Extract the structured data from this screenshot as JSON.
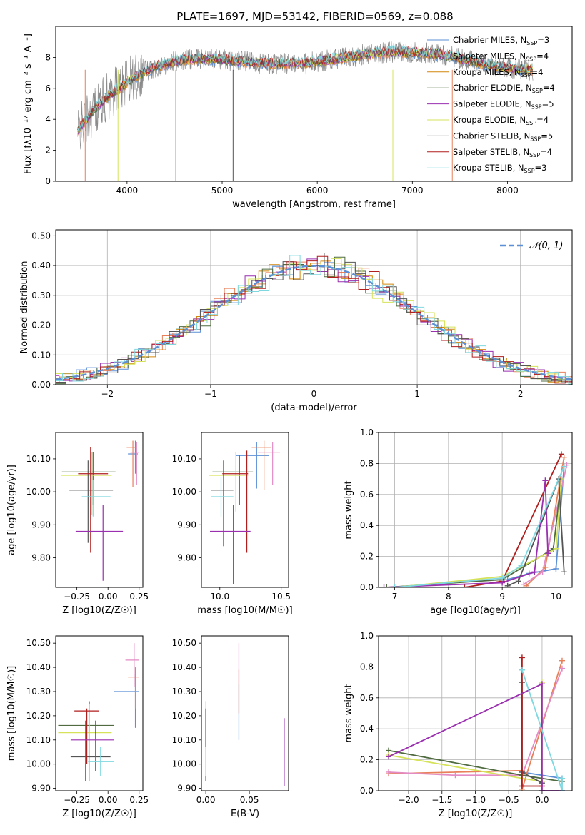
{
  "figure": {
    "title": "PLATE=1697, MJD=53142, FIBERID=0569, z=0.088"
  },
  "chart_data": [
    {
      "id": "spectrum",
      "type": "line",
      "xlabel": "wavelength [Angstrom, rest frame]",
      "ylabel": "Flux [fλ10⁻¹⁷ erg cm⁻² s⁻¹ A⁻¹]",
      "xlim": [
        3250,
        8680
      ],
      "ylim": [
        0,
        10
      ],
      "xticks": [
        4000,
        5000,
        6000,
        7000,
        8000
      ],
      "yticks": [
        0,
        2,
        4,
        6,
        8
      ],
      "grid": false,
      "legend_position": "right",
      "series": [
        {
          "name": "Chabrier MILES, NSSP=3",
          "color": "#5b8fd6"
        },
        {
          "name": "Salpeter MILES, NSSP=4",
          "color": "#e8805a"
        },
        {
          "name": "Kroupa MILES, NSSP=4",
          "color": "#d4860b"
        },
        {
          "name": "Chabrier ELODIE, NSSP=4",
          "color": "#4f6b3f"
        },
        {
          "name": "Salpeter ELODIE, NSSP=5",
          "color": "#9a2fb0"
        },
        {
          "name": "Kroupa ELODIE, NSSP=4",
          "color": "#d6e35a"
        },
        {
          "name": "Chabrier STELIB, NSSP=5",
          "color": "#555555"
        },
        {
          "name": "Salpeter STELIB, NSSP=4",
          "color": "#b01e1e"
        },
        {
          "name": "Kroupa STELIB, NSSP=3",
          "color": "#7fd8e0"
        }
      ]
    },
    {
      "id": "residuals",
      "type": "line",
      "xlabel": "(data-model)/error",
      "ylabel": "Normed distribution",
      "xlim": [
        -2.5,
        2.5
      ],
      "ylim": [
        0,
        0.52
      ],
      "xticks": [
        -2,
        -1,
        0,
        1,
        2
      ],
      "yticks": [
        0.0,
        0.1,
        0.2,
        0.3,
        0.4,
        0.5
      ],
      "grid": true,
      "legend_position": "top-right",
      "legend": "𝒩(0, 1)"
    },
    {
      "id": "age_vs_Z",
      "type": "scatter",
      "xlabel": "Z [log10(Z/Z☉)]",
      "ylabel": "age  [log10(age/yr)]",
      "xlim": [
        -0.42,
        0.28
      ],
      "ylim": [
        9.71,
        10.18
      ],
      "xticks": [
        -0.25,
        0.0,
        0.25
      ],
      "yticks": [
        9.8,
        9.9,
        10.0,
        10.1
      ],
      "points": [
        {
          "color": "#5b8fd6",
          "x": 0.22,
          "y": 10.115,
          "xerr": [
            0.06,
            0.02
          ],
          "yerr": [
            0.06,
            0.04
          ]
        },
        {
          "color": "#e8805a",
          "x": 0.2,
          "y": 10.135,
          "xerr": [
            0.05,
            0.03
          ],
          "yerr": [
            0.12,
            0.02
          ]
        },
        {
          "color": "#e38bc4",
          "x": 0.23,
          "y": 10.12,
          "xerr": [
            0.05,
            0.02
          ],
          "yerr": [
            0.1,
            0.03
          ]
        },
        {
          "color": "#4f6b3f",
          "x": -0.12,
          "y": 10.06,
          "xerr": [
            0.25,
            0.18
          ],
          "yerr": [
            0.1,
            0.06
          ]
        },
        {
          "color": "#d6e35a",
          "x": -0.13,
          "y": 10.05,
          "xerr": [
            0.25,
            0.16
          ],
          "yerr": [
            0.12,
            0.07
          ]
        },
        {
          "color": "#555555",
          "x": -0.16,
          "y": 10.005,
          "xerr": [
            0.15,
            0.2
          ],
          "yerr": [
            0.16,
            0.09
          ]
        },
        {
          "color": "#b01e1e",
          "x": -0.14,
          "y": 10.055,
          "xerr": [
            0.1,
            0.14
          ],
          "yerr": [
            0.24,
            0.08
          ]
        },
        {
          "color": "#9a2fb0",
          "x": -0.04,
          "y": 9.88,
          "xerr": [
            0.22,
            0.16
          ],
          "yerr": [
            0.15,
            0.08
          ]
        },
        {
          "color": "#7fd8e0",
          "x": -0.12,
          "y": 9.985,
          "xerr": [
            0.09,
            0.14
          ],
          "yerr": [
            0.06,
            0.05
          ]
        }
      ]
    },
    {
      "id": "age_vs_mass",
      "type": "scatter",
      "xlabel": "mass [log10(M/M☉)]",
      "xlim": [
        9.85,
        10.56
      ],
      "ylim": [
        9.71,
        10.18
      ],
      "xticks": [
        10.0,
        10.5
      ],
      "yticks": [
        9.8,
        9.9,
        10.0,
        10.1
      ],
      "points": [
        {
          "color": "#5b8fd6",
          "x": 10.3,
          "y": 10.11,
          "xerr": [
            0.17,
            0.1
          ],
          "yerr": [
            0.1,
            0.04
          ]
        },
        {
          "color": "#e8805a",
          "x": 10.36,
          "y": 10.135,
          "xerr": [
            0.1,
            0.06
          ],
          "yerr": [
            0.13,
            0.02
          ]
        },
        {
          "color": "#e38bc4",
          "x": 10.43,
          "y": 10.12,
          "xerr": [
            0.12,
            0.06
          ],
          "yerr": [
            0.1,
            0.03
          ]
        },
        {
          "color": "#4f6b3f",
          "x": 10.16,
          "y": 10.06,
          "xerr": [
            0.22,
            0.11
          ],
          "yerr": [
            0.1,
            0.05
          ]
        },
        {
          "color": "#d6e35a",
          "x": 10.13,
          "y": 10.05,
          "xerr": [
            0.22,
            0.1
          ],
          "yerr": [
            0.11,
            0.07
          ]
        },
        {
          "color": "#555555",
          "x": 10.03,
          "y": 10.005,
          "xerr": [
            0.1,
            0.08
          ],
          "yerr": [
            0.17,
            0.09
          ]
        },
        {
          "color": "#b01e1e",
          "x": 10.22,
          "y": 10.055,
          "xerr": [
            0.2,
            0.01
          ],
          "yerr": [
            0.24,
            0.07
          ]
        },
        {
          "color": "#9a2fb0",
          "x": 10.11,
          "y": 9.88,
          "xerr": [
            0.19,
            0.14
          ],
          "yerr": [
            0.16,
            0.08
          ]
        },
        {
          "color": "#7fd8e0",
          "x": 10.01,
          "y": 9.985,
          "xerr": [
            0.08,
            0.1
          ],
          "yerr": [
            0.06,
            0.06
          ]
        }
      ]
    },
    {
      "id": "weight_vs_age",
      "type": "line",
      "xlabel": "age  [log10(age/yr)]",
      "ylabel": "mass weight",
      "xlim": [
        6.7,
        10.3
      ],
      "ylim": [
        0,
        1
      ],
      "xticks": [
        7,
        8,
        9,
        10
      ],
      "yticks": [
        0.0,
        0.2,
        0.4,
        0.6,
        0.8,
        1.0
      ],
      "grid": true,
      "series": [
        {
          "color": "#5b8fd6",
          "x": [
            9.1,
            9.5,
            10.0,
            10.15
          ],
          "y": [
            0.05,
            0.09,
            0.12,
            0.78
          ]
        },
        {
          "color": "#e8805a",
          "x": [
            9.45,
            9.8,
            10.15
          ],
          "y": [
            0.01,
            0.13,
            0.84
          ]
        },
        {
          "color": "#e38bc4",
          "x": [
            9.4,
            9.75,
            10.2
          ],
          "y": [
            0.02,
            0.1,
            0.79
          ]
        },
        {
          "color": "#4f6b3f",
          "x": [
            6.85,
            9.0,
            9.95,
            10.1
          ],
          "y": [
            0.0,
            0.05,
            0.25,
            0.7
          ]
        },
        {
          "color": "#d6e35a",
          "x": [
            7.0,
            9.0,
            10.0,
            10.1
          ],
          "y": [
            0.0,
            0.07,
            0.25,
            0.7
          ]
        },
        {
          "color": "#555555",
          "x": [
            9.1,
            9.3,
            10.05,
            10.15
          ],
          "y": [
            0.01,
            0.04,
            0.7,
            0.1
          ]
        },
        {
          "color": "#b01e1e",
          "x": [
            8.3,
            9.0,
            10.1
          ],
          "y": [
            0.0,
            0.04,
            0.86
          ]
        },
        {
          "color": "#9a2fb0",
          "x": [
            6.8,
            9.0,
            9.6,
            9.8,
            9.85
          ],
          "y": [
            0.0,
            0.03,
            0.1,
            0.69,
            0.22
          ]
        },
        {
          "color": "#7fd8e0",
          "x": [
            7.0,
            9.0,
            9.35,
            10.15
          ],
          "y": [
            0.0,
            0.06,
            0.14,
            0.78
          ]
        }
      ]
    },
    {
      "id": "mass_vs_Z",
      "type": "scatter",
      "xlabel": "Z [log10(Z/Z☉)]",
      "ylabel": "mass [log10(M/M☉)]",
      "xlim": [
        -0.42,
        0.28
      ],
      "ylim": [
        9.89,
        10.53
      ],
      "xticks": [
        -0.25,
        0.0,
        0.25
      ],
      "yticks": [
        9.9,
        10.0,
        10.1,
        10.2,
        10.3,
        10.4,
        10.5
      ],
      "points": [
        {
          "color": "#5b8fd6",
          "x": 0.22,
          "y": 10.3,
          "xerr": [
            0.17,
            0.03
          ],
          "yerr": [
            0.15,
            0.07
          ]
        },
        {
          "color": "#e8805a",
          "x": 0.22,
          "y": 10.36,
          "xerr": [
            0.06,
            0.03
          ],
          "yerr": [
            0.13,
            0.04
          ]
        },
        {
          "color": "#e38bc4",
          "x": 0.21,
          "y": 10.43,
          "xerr": [
            0.07,
            0.04
          ],
          "yerr": [
            0.11,
            0.07
          ]
        },
        {
          "color": "#4f6b3f",
          "x": -0.15,
          "y": 10.16,
          "xerr": [
            0.25,
            0.2
          ],
          "yerr": [
            0.23,
            0.1
          ]
        },
        {
          "color": "#d6e35a",
          "x": -0.15,
          "y": 10.13,
          "xerr": [
            0.25,
            0.18
          ],
          "yerr": [
            0.2,
            0.12
          ]
        },
        {
          "color": "#555555",
          "x": -0.18,
          "y": 10.03,
          "xerr": [
            0.12,
            0.2
          ],
          "yerr": [
            0.1,
            0.15
          ]
        },
        {
          "color": "#b01e1e",
          "x": -0.17,
          "y": 10.22,
          "xerr": [
            0.1,
            0.1
          ],
          "yerr": [
            0.22,
            0.01
          ]
        },
        {
          "color": "#9a2fb0",
          "x": -0.1,
          "y": 10.1,
          "xerr": [
            0.2,
            0.15
          ],
          "yerr": [
            0.13,
            0.08
          ]
        },
        {
          "color": "#7fd8e0",
          "x": -0.06,
          "y": 10.01,
          "xerr": [
            0.1,
            0.11
          ],
          "yerr": [
            0.06,
            0.06
          ]
        }
      ]
    },
    {
      "id": "mass_vs_EBV",
      "type": "scatter",
      "xlabel": "E(B-V)",
      "xlim": [
        -0.005,
        0.095
      ],
      "ylim": [
        9.89,
        10.53
      ],
      "xticks": [
        0.0,
        0.05
      ],
      "yticks": [
        9.9,
        10.0,
        10.1,
        10.2,
        10.3,
        10.4,
        10.5
      ],
      "points": [
        {
          "color": "#5b8fd6",
          "x": 0.038,
          "y": 10.3,
          "xerr": [
            0,
            0
          ],
          "yerr": [
            0.2,
            0.03
          ]
        },
        {
          "color": "#e8805a",
          "x": 0.038,
          "y": 10.36,
          "xerr": [
            0,
            0
          ],
          "yerr": [
            0.15,
            0.03
          ]
        },
        {
          "color": "#e38bc4",
          "x": 0.038,
          "y": 10.43,
          "xerr": [
            0,
            0
          ],
          "yerr": [
            0.1,
            0.07
          ]
        },
        {
          "color": "#4f6b3f",
          "x": 0.0,
          "y": 10.16,
          "xerr": [
            0,
            0
          ],
          "yerr": [
            0.22,
            0.1
          ]
        },
        {
          "color": "#d6e35a",
          "x": 0.0,
          "y": 10.13,
          "xerr": [
            0,
            0
          ],
          "yerr": [
            0.2,
            0.13
          ]
        },
        {
          "color": "#555555",
          "x": 0.0,
          "y": 10.03,
          "xerr": [
            0,
            0
          ],
          "yerr": [
            0.1,
            0.14
          ]
        },
        {
          "color": "#b01e1e",
          "x": 0.0,
          "y": 10.22,
          "xerr": [
            0,
            0
          ],
          "yerr": [
            0.22,
            0.01
          ]
        },
        {
          "color": "#9a2fb0",
          "x": 0.09,
          "y": 10.1,
          "xerr": [
            0,
            0
          ],
          "yerr": [
            0.19,
            0.09
          ]
        },
        {
          "color": "#7fd8e0",
          "x": 0.0,
          "y": 10.01,
          "xerr": [
            0,
            0
          ],
          "yerr": [
            0.06,
            0.06
          ]
        }
      ]
    },
    {
      "id": "weight_vs_Z",
      "type": "line",
      "xlabel": "Z [log10(Z/Z☉)]",
      "ylabel": "mass weight",
      "xlim": [
        -2.45,
        0.45
      ],
      "ylim": [
        0,
        1
      ],
      "xticks": [
        -2.0,
        -1.5,
        -1.0,
        -0.5,
        0.0
      ],
      "yticks": [
        0.0,
        0.2,
        0.4,
        0.6,
        0.8,
        1.0
      ],
      "grid": true,
      "series": [
        {
          "color": "#5b8fd6",
          "x": [
            -0.3,
            0.3
          ],
          "y": [
            0.12,
            0.08
          ]
        },
        {
          "color": "#e8805a",
          "x": [
            -2.3,
            -0.3,
            -0.3,
            0.3
          ],
          "y": [
            0.11,
            0.13,
            0.01,
            0.84
          ]
        },
        {
          "color": "#e38bc4",
          "x": [
            -2.3,
            -1.3,
            -0.3,
            0.3
          ],
          "y": [
            0.12,
            0.1,
            0.1,
            0.79
          ]
        },
        {
          "color": "#4f6b3f",
          "x": [
            -2.3,
            -0.3,
            0.3
          ],
          "y": [
            0.26,
            0.1,
            0.06
          ]
        },
        {
          "color": "#d6e35a",
          "x": [
            -2.3,
            -0.3,
            0.0,
            0.0
          ],
          "y": [
            0.23,
            0.08,
            0.06,
            0.7
          ]
        },
        {
          "color": "#555555",
          "x": [
            -0.3,
            -0.3,
            0.0
          ],
          "y": [
            0.7,
            0.12,
            0.05
          ]
        },
        {
          "color": "#b01e1e",
          "x": [
            -0.3,
            -0.3,
            0.0
          ],
          "y": [
            0.86,
            0.03,
            0.03
          ]
        },
        {
          "color": "#9a2fb0",
          "x": [
            -2.3,
            0.0,
            0.0,
            0.3
          ],
          "y": [
            0.22,
            0.69,
            0.0,
            0.0
          ]
        },
        {
          "color": "#7fd8e0",
          "x": [
            -0.3,
            0.3,
            0.3
          ],
          "y": [
            0.78,
            0.0,
            0.08
          ]
        }
      ]
    }
  ]
}
